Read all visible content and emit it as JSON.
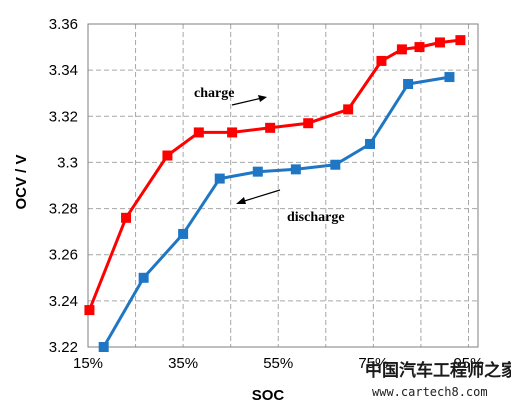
{
  "chart_data": {
    "type": "line",
    "xlabel": "SOC",
    "ylabel": "OCV / V",
    "xlim": [
      15,
      97
    ],
    "ylim": [
      3.22,
      3.36
    ],
    "x_ticks": [
      15,
      35,
      55,
      75,
      95
    ],
    "x_tick_labels": [
      "15%",
      "35%",
      "55%",
      "75%",
      "95%"
    ],
    "y_ticks": [
      3.22,
      3.24,
      3.26,
      3.28,
      3.3,
      3.32,
      3.34,
      3.36
    ],
    "y_tick_labels": [
      "3.22",
      "3.24",
      "3.26",
      "3.28",
      "3.3",
      "3.32",
      "3.34",
      "3.36"
    ],
    "x_minor_grid": [
      25,
      45,
      65,
      85
    ],
    "grid": true,
    "series": [
      {
        "key": "charge",
        "color": "#ff0000",
        "points": [
          [
            15.3,
            3.236
          ],
          [
            23.0,
            3.276
          ],
          [
            31.7,
            3.303
          ],
          [
            38.3,
            3.313
          ],
          [
            45.3,
            3.313
          ],
          [
            53.3,
            3.315
          ],
          [
            61.3,
            3.317
          ],
          [
            69.7,
            3.323
          ],
          [
            76.7,
            3.344
          ],
          [
            81.0,
            3.349
          ],
          [
            84.7,
            3.35
          ],
          [
            89.0,
            3.352
          ],
          [
            93.3,
            3.353
          ]
        ]
      },
      {
        "key": "discharge",
        "color": "#1f77c4",
        "points": [
          [
            18.3,
            3.22
          ],
          [
            26.7,
            3.25
          ],
          [
            35.0,
            3.269
          ],
          [
            42.7,
            3.293
          ],
          [
            50.7,
            3.296
          ],
          [
            58.7,
            3.297
          ],
          [
            67.0,
            3.299
          ],
          [
            74.3,
            3.308
          ],
          [
            82.3,
            3.334
          ],
          [
            91.0,
            3.337
          ]
        ]
      }
    ],
    "annotations": {
      "charge": "charge",
      "discharge": "discharge"
    }
  },
  "watermark": {
    "chinese": "中国汽车工程师之家",
    "url": "www.cartech8.com"
  }
}
